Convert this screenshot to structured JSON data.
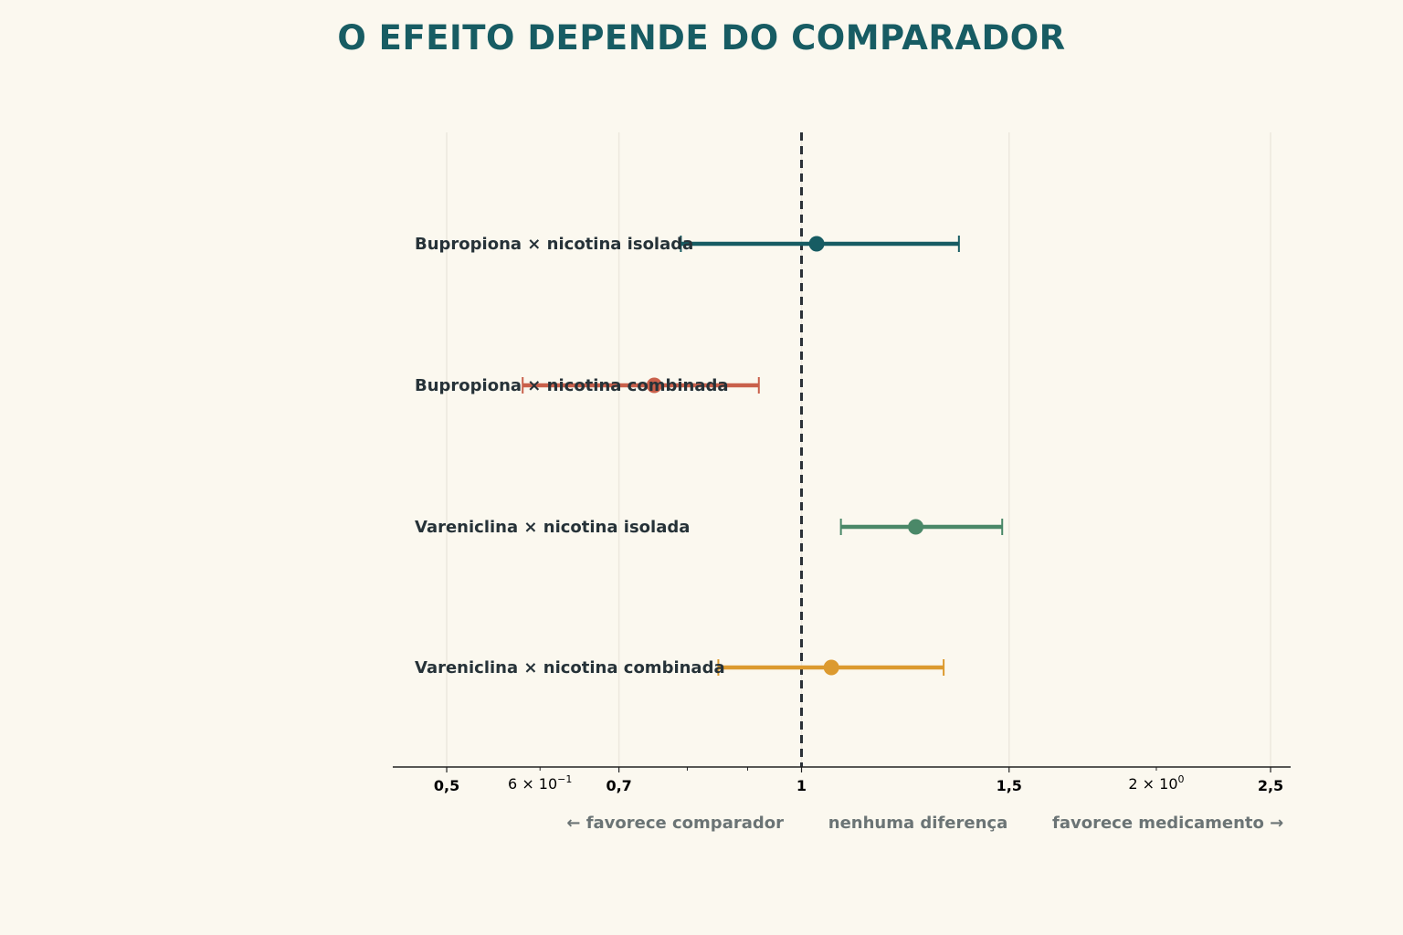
{
  "title": "O EFEITO DEPENDE DO COMPARADOR",
  "colors": {
    "title": "#175c63",
    "background": "#fbf8ef",
    "reference_line": "#2b3137",
    "grid": "#ece8de",
    "axis": "#222222"
  },
  "chart_data": {
    "type": "forest",
    "title": "O EFEITO DEPENDE DO COMPARADOR",
    "x_scale": "log",
    "xlim": [
      0.45,
      2.6
    ],
    "reference_value": 1,
    "grid": true,
    "major_ticks": [
      {
        "value": 0.5,
        "label": "0,5"
      },
      {
        "value": 0.7,
        "label": "0,7"
      },
      {
        "value": 1,
        "label": "1"
      },
      {
        "value": 1.5,
        "label": "1,5"
      },
      {
        "value": 2.5,
        "label": "2,5"
      }
    ],
    "minor_ticks": [
      {
        "value": 0.6,
        "label": "6 × 10",
        "exp": "−1"
      },
      {
        "value": 2,
        "label": "2 × 10",
        "exp": "0"
      }
    ],
    "minor_unlabeled": [
      0.8,
      0.9
    ],
    "direction_labels": {
      "left": "← favorece comparador",
      "center": "nenhuma diferença",
      "right": "favorece medicamento →"
    },
    "series": [
      {
        "label": "Bupropiona × nicotina isolada",
        "estimate": 1.03,
        "ci_low": 0.79,
        "ci_high": 1.36,
        "color": "#175c63"
      },
      {
        "label": "Bupropiona × nicotina combinada",
        "estimate": 0.75,
        "ci_low": 0.58,
        "ci_high": 0.92,
        "color": "#c9604b"
      },
      {
        "label": "Vareniclina × nicotina isolada",
        "estimate": 1.25,
        "ci_low": 1.08,
        "ci_high": 1.48,
        "color": "#4a8868"
      },
      {
        "label": "Vareniclina × nicotina combinada",
        "estimate": 1.06,
        "ci_low": 0.85,
        "ci_high": 1.32,
        "color": "#dc9a2f"
      }
    ]
  }
}
